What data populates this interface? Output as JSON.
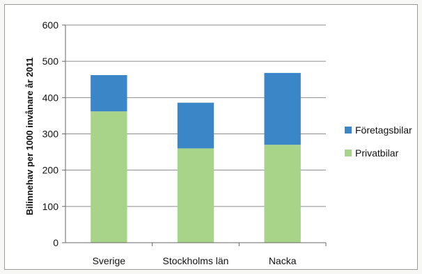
{
  "chart_data": {
    "type": "bar",
    "stacked": true,
    "categories": [
      "Sverige",
      "Stockholms län",
      "Nacka"
    ],
    "series": [
      {
        "name": "Privatbilar",
        "values": [
          362,
          260,
          270
        ],
        "color": "#a8d48a"
      },
      {
        "name": "Företagsbilar",
        "values": [
          100,
          126,
          198
        ],
        "color": "#3b86c6"
      }
    ],
    "title": "",
    "xlabel": "",
    "ylabel": "Bilinnehav per 1000 invånare år 2011",
    "ylim": [
      0,
      600
    ],
    "yticks": [
      0,
      100,
      200,
      300,
      400,
      500,
      600
    ],
    "grid": true,
    "legend": "right"
  }
}
